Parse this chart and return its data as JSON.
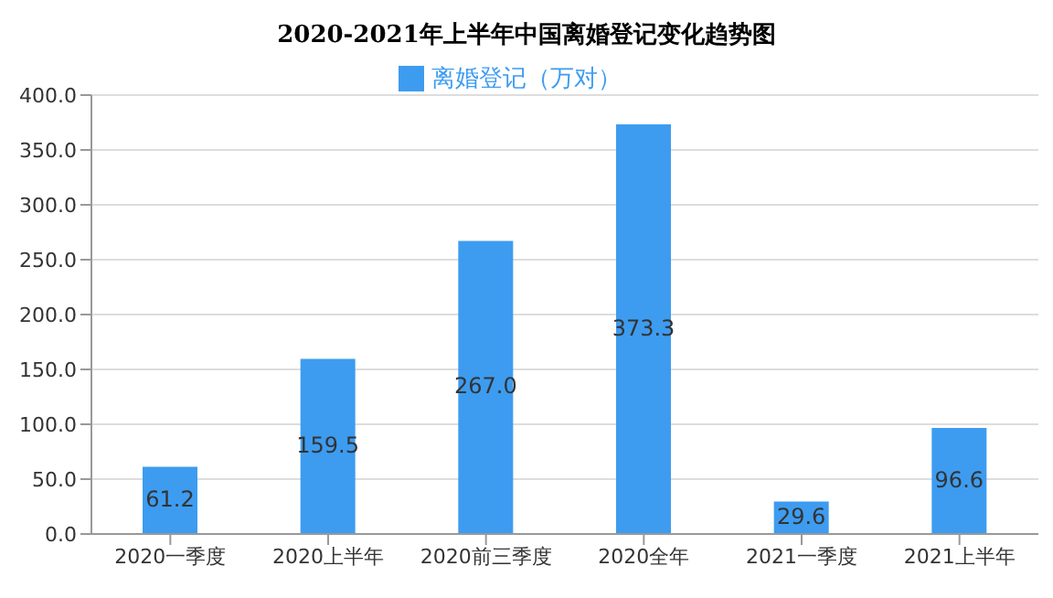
{
  "chart_data": {
    "type": "bar",
    "title": "2020-2021年上半年中国离婚登记变化趋势图",
    "categories": [
      "2020一季度",
      "2020上半年",
      "2020前三季度",
      "2020全年",
      "2021一季度",
      "2021上半年"
    ],
    "series": [
      {
        "name": "离婚登记（万对）",
        "color": "#3d9cf0",
        "values": [
          61.2,
          159.5,
          267.0,
          373.3,
          29.6,
          96.6
        ],
        "value_labels": [
          "61.2",
          "159.5",
          "267.0",
          "373.3",
          "29.6",
          "96.6"
        ]
      }
    ],
    "ylim": [
      0,
      400
    ],
    "yticks": [
      {
        "value": 0,
        "label": "0.0"
      },
      {
        "value": 50,
        "label": "50.0"
      },
      {
        "value": 100,
        "label": "100.0"
      },
      {
        "value": 150,
        "label": "150.0"
      },
      {
        "value": 200,
        "label": "200.0"
      },
      {
        "value": 250,
        "label": "250.0"
      },
      {
        "value": 300,
        "label": "300.0"
      },
      {
        "value": 350,
        "label": "350.0"
      },
      {
        "value": 400,
        "label": "400.0"
      }
    ],
    "grid": "y",
    "legend": "top"
  }
}
